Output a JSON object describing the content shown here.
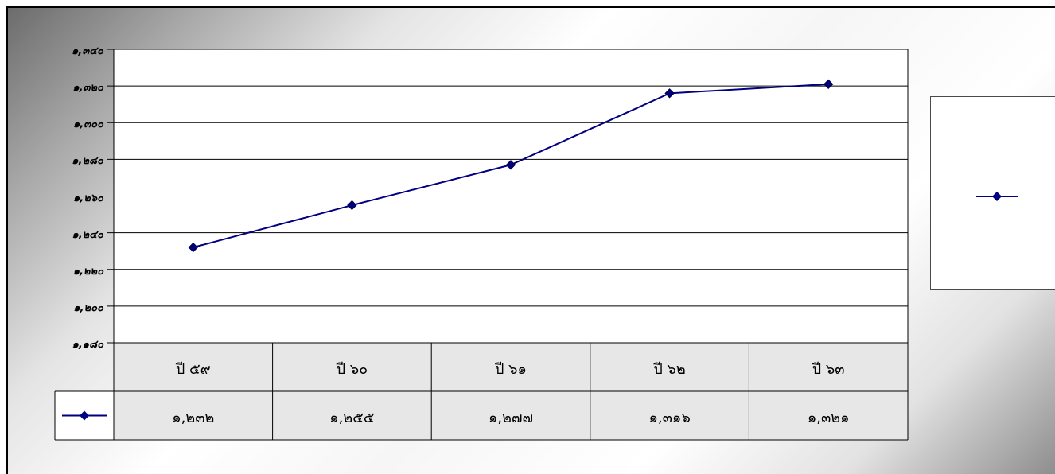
{
  "chart_data": {
    "type": "line",
    "categories": [
      "ปี ๕๙",
      "ปี ๖๐",
      "ปี ๖๑",
      "ปี ๖๒",
      "ปี ๖๓"
    ],
    "series": [
      {
        "values": [
          1232,
          1255,
          1277,
          1316,
          1321
        ],
        "value_labels": [
          "๑,๒๓๒",
          "๑,๒๕๕",
          "๑,๒๗๗",
          "๑,๓๑๖",
          "๑,๓๒๑"
        ],
        "color": "#000080",
        "marker": "diamond"
      }
    ],
    "ylim": [
      1180,
      1340
    ],
    "ytick_values": [
      1180,
      1200,
      1220,
      1240,
      1260,
      1280,
      1300,
      1320,
      1340
    ],
    "ytick_labels": [
      "๑,๑๘๐",
      "๑,๒๐๐",
      "๑,๒๒๐",
      "๑,๒๔๐",
      "๑,๒๖๐",
      "๑,๒๘๐",
      "๑,๓๐๐",
      "๑,๓๒๐",
      "๑,๓๔๐"
    ],
    "grid": true,
    "data_table": true,
    "legend": "right"
  }
}
